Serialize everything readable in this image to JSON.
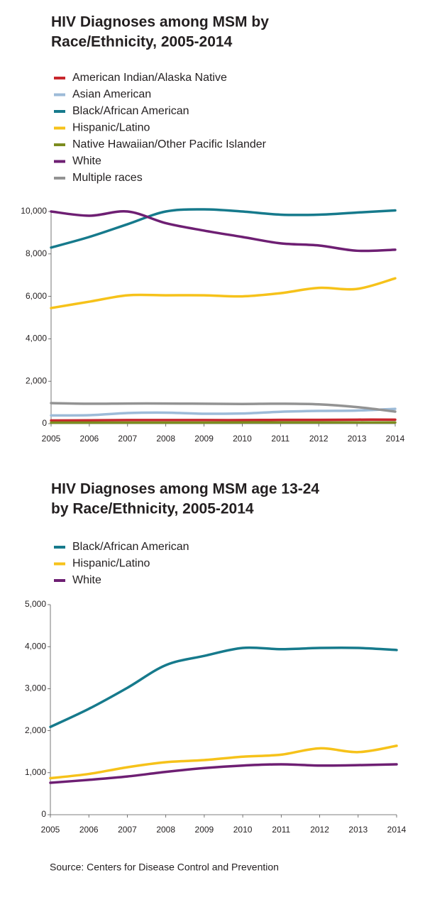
{
  "chart_data": [
    {
      "type": "line",
      "title": [
        "HIV Diagnoses among MSM by",
        "Race/Ethnicity, 2005-2014"
      ],
      "x": [
        2005,
        2006,
        2007,
        2008,
        2009,
        2010,
        2011,
        2012,
        2013,
        2014
      ],
      "xlim": [
        2005,
        2014
      ],
      "xticks": [
        2005,
        2006,
        2007,
        2008,
        2009,
        2010,
        2011,
        2012,
        2013,
        2014
      ],
      "ylim": [
        0,
        10000
      ],
      "yticks": [
        0,
        {
          "value": 2000,
          "label": "2,000"
        },
        {
          "value": 4000,
          "label": "4,000"
        },
        {
          "value": 6000,
          "label": "6,000"
        },
        {
          "value": 8000,
          "label": "8,000"
        },
        {
          "value": 10000,
          "label": "10,000"
        }
      ],
      "series": [
        {
          "name": "American Indian/Alaska Native",
          "color": "#c8272d",
          "values": [
            150,
            160,
            170,
            170,
            170,
            170,
            180,
            180,
            190,
            190
          ]
        },
        {
          "name": "Asian American",
          "color": "#9dbbd8",
          "values": [
            390,
            400,
            500,
            520,
            470,
            480,
            560,
            600,
            620,
            700
          ]
        },
        {
          "name": "Black/African American",
          "color": "#167a8c",
          "values": [
            8300,
            8800,
            9400,
            10000,
            10100,
            10000,
            9850,
            9850,
            9950,
            10050
          ]
        },
        {
          "name": "Hispanic/Latino",
          "color": "#f6c21a",
          "values": [
            5450,
            5750,
            6050,
            6050,
            6050,
            6000,
            6150,
            6400,
            6350,
            6850
          ]
        },
        {
          "name": "Native Hawaiian/Other Pacific Islander",
          "color": "#7c8c1f",
          "values": [
            50,
            50,
            50,
            50,
            50,
            60,
            60,
            60,
            60,
            60
          ]
        },
        {
          "name": "White",
          "color": "#6e1f73",
          "values": [
            10000,
            9800,
            10000,
            9450,
            9100,
            8800,
            8500,
            8400,
            8150,
            8200
          ]
        },
        {
          "name": "Multiple races",
          "color": "#939393",
          "values": [
            970,
            940,
            950,
            950,
            940,
            930,
            940,
            910,
            780,
            570
          ]
        }
      ]
    },
    {
      "type": "line",
      "title": [
        "HIV Diagnoses among MSM age 13-24",
        "by Race/Ethnicity, 2005-2014"
      ],
      "x": [
        2005,
        2006,
        2007,
        2008,
        2009,
        2010,
        2011,
        2012,
        2013,
        2014
      ],
      "xlim": [
        2005,
        2014
      ],
      "xticks": [
        2005,
        2006,
        2007,
        2008,
        2009,
        2010,
        2011,
        2012,
        2013,
        2014
      ],
      "ylim": [
        0,
        5000
      ],
      "yticks": [
        0,
        {
          "value": 1000,
          "label": "1,000"
        },
        {
          "value": 2000,
          "label": "2,000"
        },
        {
          "value": 3000,
          "label": "3,000"
        },
        {
          "value": 4000,
          "label": "4,000"
        },
        {
          "value": 5000,
          "label": "5,000"
        }
      ],
      "series": [
        {
          "name": "Black/African American",
          "color": "#167a8c",
          "values": [
            2090,
            2520,
            3020,
            3560,
            3780,
            3970,
            3940,
            3970,
            3970,
            3920
          ]
        },
        {
          "name": "Hispanic/Latino",
          "color": "#f6c21a",
          "values": [
            870,
            970,
            1130,
            1250,
            1300,
            1380,
            1430,
            1580,
            1490,
            1640
          ]
        },
        {
          "name": "White",
          "color": "#6e1f73",
          "values": [
            760,
            830,
            910,
            1020,
            1110,
            1170,
            1200,
            1170,
            1180,
            1200
          ]
        }
      ]
    }
  ],
  "source": "Source: Centers for Disease Control and Prevention"
}
